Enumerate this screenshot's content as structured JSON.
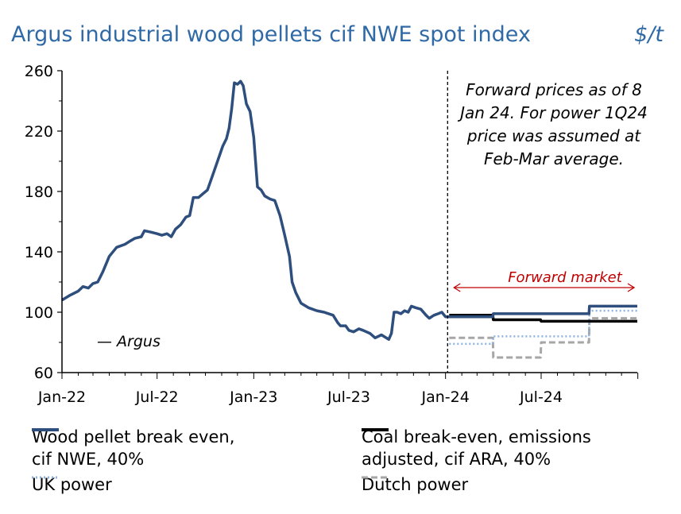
{
  "header": {
    "title": "Argus industrial wood pellets cif NWE spot index",
    "unit": "$/t"
  },
  "annotations": {
    "forward_note": [
      "Forward prices as of 8",
      "Jan 24. For power 1Q24",
      "price was assumed at",
      "Feb-Mar average."
    ],
    "forward_market": "Forward market",
    "source": "— Argus"
  },
  "legend": [
    {
      "label_lines": [
        "Wood pellet break even,",
        "cif NWE, 40%"
      ]
    },
    {
      "label_lines": [
        "Coal break-even, emissions",
        "adjusted, cif ARA, 40%"
      ]
    },
    {
      "label_lines": [
        "UK power"
      ]
    },
    {
      "label_lines": [
        "Dutch power"
      ]
    }
  ],
  "colors": {
    "blue": "#2e4f7d",
    "black": "#000000",
    "light_blue": "#8db3e0",
    "grey": "#a6a6a6",
    "red": "#c00000",
    "title": "#2f6aa6"
  },
  "chart_data": {
    "type": "line",
    "title": "Argus industrial wood pellets cif NWE spot index",
    "ylabel": "$/t",
    "ylim": [
      60,
      260
    ],
    "yticks": [
      60,
      100,
      140,
      180,
      220,
      260
    ],
    "xlim": [
      "2022-01-01",
      "2024-12-31"
    ],
    "xticks": [
      "Jan-22",
      "Jul-22",
      "Jan-23",
      "Jul-23",
      "Jan-24",
      "Jul-24"
    ],
    "forward_start": "2024-01-08",
    "series": [
      {
        "name": "Wood pellet break even, cif NWE, 40%",
        "style": "solid-thick",
        "color": "#2e4f7d",
        "points": [
          [
            "2022-01-01",
            108
          ],
          [
            "2022-01-15",
            111
          ],
          [
            "2022-02-01",
            114
          ],
          [
            "2022-02-10",
            117
          ],
          [
            "2022-02-20",
            116
          ],
          [
            "2022-03-01",
            119
          ],
          [
            "2022-03-10",
            120
          ],
          [
            "2022-03-20",
            127
          ],
          [
            "2022-04-01",
            137
          ],
          [
            "2022-04-15",
            143
          ],
          [
            "2022-05-01",
            145
          ],
          [
            "2022-05-10",
            147
          ],
          [
            "2022-05-20",
            149
          ],
          [
            "2022-06-01",
            150
          ],
          [
            "2022-06-07",
            154
          ],
          [
            "2022-06-20",
            153
          ],
          [
            "2022-07-01",
            152
          ],
          [
            "2022-07-10",
            151
          ],
          [
            "2022-07-20",
            152
          ],
          [
            "2022-07-28",
            150
          ],
          [
            "2022-08-05",
            155
          ],
          [
            "2022-08-15",
            158
          ],
          [
            "2022-08-25",
            163
          ],
          [
            "2022-09-01",
            164
          ],
          [
            "2022-09-08",
            176
          ],
          [
            "2022-09-18",
            176
          ],
          [
            "2022-09-28",
            179
          ],
          [
            "2022-10-05",
            181
          ],
          [
            "2022-10-15",
            191
          ],
          [
            "2022-10-25",
            201
          ],
          [
            "2022-11-03",
            210
          ],
          [
            "2022-11-10",
            215
          ],
          [
            "2022-11-15",
            222
          ],
          [
            "2022-11-20",
            235
          ],
          [
            "2022-11-25",
            252
          ],
          [
            "2022-12-01",
            251
          ],
          [
            "2022-12-07",
            253
          ],
          [
            "2022-12-12",
            250
          ],
          [
            "2022-12-18",
            238
          ],
          [
            "2022-12-25",
            233
          ],
          [
            "2023-01-01",
            216
          ],
          [
            "2023-01-08",
            183
          ],
          [
            "2023-01-15",
            181
          ],
          [
            "2023-01-22",
            177
          ],
          [
            "2023-02-01",
            175
          ],
          [
            "2023-02-10",
            174
          ],
          [
            "2023-02-20",
            164
          ],
          [
            "2023-03-01",
            151
          ],
          [
            "2023-03-10",
            137
          ],
          [
            "2023-03-15",
            120
          ],
          [
            "2023-03-22",
            113
          ],
          [
            "2023-04-01",
            106
          ],
          [
            "2023-04-15",
            103
          ],
          [
            "2023-05-01",
            101
          ],
          [
            "2023-05-15",
            100
          ],
          [
            "2023-06-01",
            98
          ],
          [
            "2023-06-10",
            93
          ],
          [
            "2023-06-15",
            91
          ],
          [
            "2023-06-25",
            91
          ],
          [
            "2023-07-01",
            88
          ],
          [
            "2023-07-10",
            87
          ],
          [
            "2023-07-20",
            89
          ],
          [
            "2023-07-28",
            88
          ],
          [
            "2023-08-10",
            86
          ],
          [
            "2023-08-20",
            83
          ],
          [
            "2023-09-01",
            85
          ],
          [
            "2023-09-15",
            82
          ],
          [
            "2023-09-20",
            86
          ],
          [
            "2023-09-25",
            100
          ],
          [
            "2023-10-01",
            100
          ],
          [
            "2023-10-08",
            99
          ],
          [
            "2023-10-15",
            101
          ],
          [
            "2023-10-22",
            100
          ],
          [
            "2023-10-28",
            104
          ],
          [
            "2023-11-05",
            103
          ],
          [
            "2023-11-15",
            102
          ],
          [
            "2023-11-25",
            98
          ],
          [
            "2023-12-01",
            96
          ],
          [
            "2023-12-10",
            98
          ],
          [
            "2023-12-18",
            99
          ],
          [
            "2023-12-25",
            100
          ],
          [
            "2024-01-01",
            97
          ],
          [
            "2024-01-08",
            97
          ],
          [
            "2024-03-31",
            97
          ],
          [
            "2024-04-01",
            99
          ],
          [
            "2024-09-30",
            99
          ],
          [
            "2024-10-01",
            104
          ],
          [
            "2024-12-31",
            104
          ]
        ]
      },
      {
        "name": "Coal break-even, emissions adjusted, cif ARA, 40%",
        "style": "solid-thick",
        "color": "#000000",
        "points": [
          [
            "2024-01-08",
            98
          ],
          [
            "2024-03-31",
            98
          ],
          [
            "2024-04-01",
            95
          ],
          [
            "2024-06-30",
            95
          ],
          [
            "2024-07-01",
            94
          ],
          [
            "2024-12-31",
            94
          ]
        ]
      },
      {
        "name": "UK power",
        "style": "dotted",
        "color": "#8db3e0",
        "points": [
          [
            "2024-01-08",
            79
          ],
          [
            "2024-03-31",
            79
          ],
          [
            "2024-04-01",
            84
          ],
          [
            "2024-09-30",
            84
          ],
          [
            "2024-10-01",
            101
          ],
          [
            "2024-12-31",
            101
          ]
        ]
      },
      {
        "name": "Dutch power",
        "style": "dashed",
        "color": "#a6a6a6",
        "points": [
          [
            "2024-01-08",
            83
          ],
          [
            "2024-03-31",
            83
          ],
          [
            "2024-04-01",
            70
          ],
          [
            "2024-06-30",
            70
          ],
          [
            "2024-07-01",
            80
          ],
          [
            "2024-09-30",
            80
          ],
          [
            "2024-10-01",
            96
          ],
          [
            "2024-12-31",
            96
          ]
        ]
      }
    ]
  }
}
